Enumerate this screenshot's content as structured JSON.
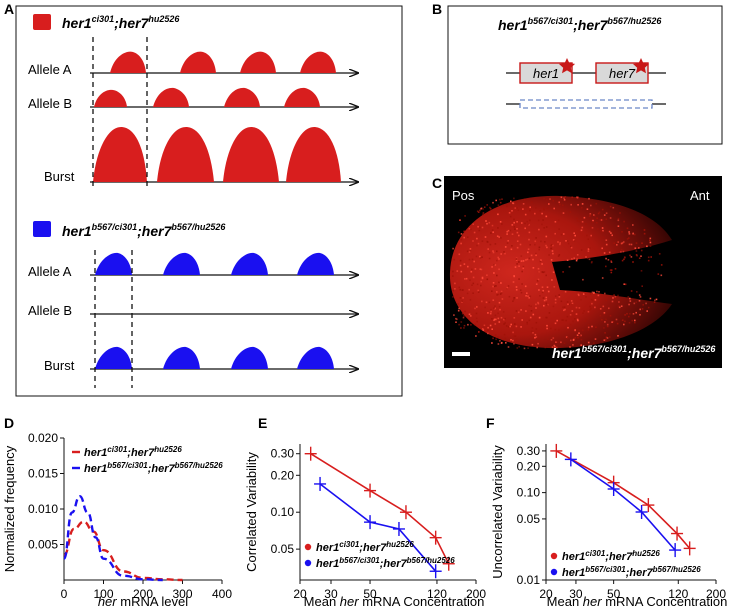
{
  "panel_labels": {
    "A": "A",
    "B": "B",
    "C": "C",
    "D": "D",
    "E": "E",
    "F": "F"
  },
  "colors": {
    "red": "#d81e1e",
    "blue": "#1a10f0",
    "gray_box": "#d9d9d9",
    "dashed_blue": "#6b86c8"
  },
  "panelA": {
    "top_genotype": {
      "base1": "her1",
      "sup1": "ci301",
      "sep": ";",
      "base2": "her7",
      "sup2": "hu2526"
    },
    "bottom_genotype": {
      "base1": "her1",
      "sup1": "b567/ci301",
      "sep": ";",
      "base2": "her7",
      "sup2": "b567/hu2526"
    },
    "row_labels": {
      "allele_a": "Allele A",
      "allele_b": "Allele B",
      "burst": "Burst"
    }
  },
  "panelB": {
    "genotype": {
      "base1": "her1",
      "sup1": "b567/ci301",
      "sep": ";",
      "base2": "her7",
      "sup2": "b567/hu2526"
    },
    "gene1": "her1",
    "gene2": "her7"
  },
  "panelC": {
    "pos": "Pos",
    "ant": "Ant",
    "genotype": {
      "base1": "her1",
      "sup1": "b567/ci301",
      "sep": ";",
      "base2": "her7",
      "sup2": "b567/hu2526"
    }
  },
  "panelD": {
    "ylabel": "Normalized frequency",
    "xlabel_italic": "her",
    "xlabel_rest": " mRNA level",
    "yticks": [
      "0.020",
      "0.015",
      "0.010",
      "0.005"
    ],
    "xticks": [
      "0",
      "100",
      "200",
      "300",
      "400"
    ],
    "legend": [
      {
        "base1": "her1",
        "sup1": "ci301",
        "sep": ";",
        "base2": "her7",
        "sup2": "hu2526"
      },
      {
        "base1": "her1",
        "sup1": "b567/ci301",
        "sep": ";",
        "base2": "her7",
        "sup2": "b567/hu2526"
      }
    ]
  },
  "panelE": {
    "ylabel": "Correlated Variability",
    "xlabel_pre": "Mean ",
    "xlabel_italic": "her",
    "xlabel_rest": " mRNA Concentration",
    "yticks": [
      "0.30",
      "0.20",
      "0.10",
      "0.05"
    ],
    "xticks": [
      "20",
      "30",
      "50",
      "120",
      "200"
    ],
    "legend": [
      {
        "base1": "her1",
        "sup1": "ci301",
        "sep": ";",
        "base2": "her7",
        "sup2": "hu2526"
      },
      {
        "base1": "her1",
        "sup1": "b567/ci301",
        "sep": ";",
        "base2": "her7",
        "sup2": "b567/hu2526"
      }
    ]
  },
  "panelF": {
    "ylabel": "Uncorrelated Variability",
    "xlabel_pre": "Mean ",
    "xlabel_italic": "her",
    "xlabel_rest": " mRNA Concentration",
    "yticks": [
      "0.30",
      "0.20",
      "0.10",
      "0.05",
      "0.01"
    ],
    "xticks": [
      "20",
      "30",
      "50",
      "120",
      "200"
    ],
    "legend": [
      {
        "base1": "her1",
        "sup1": "ci301",
        "sep": ";",
        "base2": "her7",
        "sup2": "hu2526"
      },
      {
        "base1": "her1",
        "sup1": "b567/ci301",
        "sep": ";",
        "base2": "her7",
        "sup2": "b567/hu2526"
      }
    ]
  },
  "chart_data": [
    {
      "type": "line",
      "title": "",
      "xlabel": "her mRNA level",
      "ylabel": "Normalized frequency",
      "xlim": [
        0,
        400
      ],
      "ylim": [
        0,
        0.02
      ],
      "series": [
        {
          "name": "her1ci301;her7hu2526",
          "color": "#d81e1e",
          "x": [
            0,
            25,
            50,
            75,
            100,
            150,
            200,
            250,
            300
          ],
          "y": [
            0.0035,
            0.0072,
            0.0082,
            0.0068,
            0.0042,
            0.0012,
            0.0003,
            0.0001,
            0.0
          ]
        },
        {
          "name": "her1b567/ci301;her7b567/hu2526",
          "color": "#1a10f0",
          "x": [
            0,
            20,
            40,
            60,
            80,
            100,
            150,
            200,
            250
          ],
          "y": [
            0.003,
            0.0095,
            0.0118,
            0.0095,
            0.006,
            0.003,
            0.0006,
            0.0001,
            0.0
          ]
        }
      ]
    },
    {
      "type": "line",
      "title": "",
      "xlabel": "Mean her mRNA Concentration",
      "ylabel": "Correlated Variability",
      "xscale": "log",
      "yscale": "log",
      "xlim": [
        20,
        200
      ],
      "series": [
        {
          "name": "her1ci301;her7hu2526",
          "color": "#d81e1e",
          "x": [
            23,
            50,
            80,
            118,
            140
          ],
          "y": [
            0.3,
            0.15,
            0.1,
            0.062,
            0.038
          ]
        },
        {
          "name": "her1b567/ci301;her7b567/hu2526",
          "color": "#1a10f0",
          "x": [
            26,
            50,
            73,
            118
          ],
          "y": [
            0.17,
            0.083,
            0.073,
            0.033
          ]
        }
      ]
    },
    {
      "type": "line",
      "title": "",
      "xlabel": "Mean her mRNA Concentration",
      "ylabel": "Uncorrelated Variability",
      "xscale": "log",
      "yscale": "log",
      "xlim": [
        20,
        200
      ],
      "series": [
        {
          "name": "her1ci301;her7hu2526",
          "color": "#d81e1e",
          "x": [
            23,
            50,
            80,
            118,
            140
          ],
          "y": [
            0.3,
            0.13,
            0.072,
            0.034,
            0.023
          ]
        },
        {
          "name": "her1b567/ci301;her7b567/hu2526",
          "color": "#1a10f0",
          "x": [
            28,
            50,
            73,
            115
          ],
          "y": [
            0.24,
            0.11,
            0.06,
            0.022
          ]
        }
      ]
    }
  ]
}
